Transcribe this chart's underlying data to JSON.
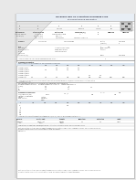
{
  "bg_color": "#e8e8e8",
  "doc_bg": "#ffffff",
  "line_color": "#aaaaaa",
  "text_dark": "#222222",
  "text_mid": "#444444",
  "text_light": "#666666",
  "header_bg": "#f5f5f5",
  "blue_bg": "#dce6f1",
  "title": "Hardness HRC As A Function of Holding Time at Different Working Temperature",
  "qr_color": "#888888"
}
